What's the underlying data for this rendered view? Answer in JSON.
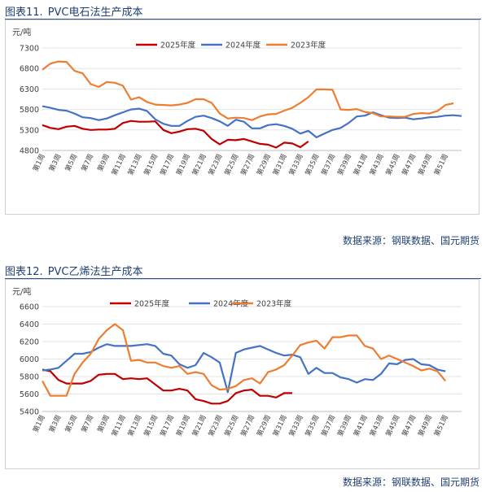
{
  "figures": [
    {
      "label": "图表11.",
      "title": "PVC电石法生产成本",
      "source": "数据来源：钢联数据、国元期货"
    },
    {
      "label": "图表12.",
      "title": "PVC乙烯法生产成本",
      "source": "数据来源：钢联数据、国元期货"
    }
  ],
  "chart_data": [
    {
      "type": "line",
      "title": "PVC电石法生产成本",
      "ylabel": "元/吨",
      "ylim": [
        4800,
        7300
      ],
      "yticks": [
        4800,
        5300,
        5800,
        6300,
        6800,
        7300
      ],
      "xtick_labels": [
        "第1周",
        "第3周",
        "第5周",
        "第7周",
        "第9周",
        "第11周",
        "第13周",
        "第15周",
        "第17周",
        "第19周",
        "第21周",
        "第23周",
        "第25周",
        "第27周",
        "第29周",
        "第31周",
        "第33周",
        "第35周",
        "第37周",
        "第39周",
        "第41周",
        "第43周",
        "第45周",
        "第47周",
        "第49周",
        "第51周"
      ],
      "legend_position": "top",
      "grid": "horizontal",
      "series": [
        {
          "name": "2025年度",
          "color": "#c00000",
          "values": [
            5420,
            5350,
            5320,
            5380,
            5400,
            5330,
            5300,
            5310,
            5310,
            5330,
            5470,
            5520,
            5500,
            5500,
            5510,
            5300,
            5220,
            5260,
            5320,
            5330,
            5280,
            5080,
            4950,
            5060,
            5050,
            5080,
            5020,
            4960,
            4940,
            4870,
            4990,
            4970,
            4880,
            5020
          ]
        },
        {
          "name": "2024年度",
          "color": "#4472c4",
          "values": [
            5880,
            5840,
            5790,
            5770,
            5700,
            5610,
            5590,
            5540,
            5580,
            5660,
            5730,
            5800,
            5820,
            5760,
            5560,
            5450,
            5400,
            5400,
            5520,
            5620,
            5650,
            5590,
            5510,
            5400,
            5550,
            5500,
            5340,
            5340,
            5420,
            5440,
            5400,
            5330,
            5210,
            5280,
            5120,
            5210,
            5300,
            5350,
            5470,
            5630,
            5650,
            5730,
            5660,
            5600,
            5590,
            5600,
            5560,
            5580,
            5610,
            5620,
            5650,
            5660,
            5640
          ]
        },
        {
          "name": "2023年度",
          "color": "#ed7d31",
          "values": [
            6770,
            6920,
            6970,
            6960,
            6740,
            6680,
            6420,
            6350,
            6470,
            6450,
            6380,
            6040,
            6100,
            5980,
            5920,
            5910,
            5900,
            5920,
            5960,
            6050,
            6050,
            5960,
            5700,
            5580,
            5600,
            5590,
            5540,
            5630,
            5680,
            5690,
            5770,
            5840,
            5960,
            6100,
            6290,
            6290,
            6280,
            5800,
            5790,
            5810,
            5740,
            5710,
            5630,
            5630,
            5620,
            5620,
            5690,
            5710,
            5700,
            5760,
            5910,
            5950
          ]
        }
      ]
    },
    {
      "type": "line",
      "title": "PVC乙烯法生产成本",
      "ylabel": "元/吨",
      "ylim": [
        5400,
        6600
      ],
      "yticks": [
        5400,
        5600,
        5800,
        6000,
        6200,
        6400,
        6600
      ],
      "xtick_labels": [
        "第1周",
        "第3周",
        "第5周",
        "第7周",
        "第9周",
        "第11周",
        "第13周",
        "第15周",
        "第17周",
        "第19周",
        "第21周",
        "第23周",
        "第25周",
        "第27周",
        "第29周",
        "第31周",
        "第33周",
        "第35周",
        "第37周",
        "第39周",
        "第41周",
        "第43周",
        "第45周",
        "第47周",
        "第49周",
        "第51周"
      ],
      "legend_position": "top",
      "grid": "horizontal",
      "series": [
        {
          "name": "2025年度",
          "color": "#c00000",
          "values": [
            5880,
            5860,
            5760,
            5720,
            5720,
            5720,
            5750,
            5820,
            5830,
            5830,
            5770,
            5780,
            5770,
            5780,
            5710,
            5640,
            5640,
            5660,
            5640,
            5540,
            5520,
            5490,
            5490,
            5520,
            5610,
            5640,
            5650,
            5580,
            5580,
            5560,
            5610,
            5610
          ]
        },
        {
          "name": "2024年度",
          "color": "#4472c4",
          "values": [
            5870,
            5880,
            5900,
            5980,
            6060,
            6060,
            6080,
            6130,
            6170,
            6150,
            6150,
            6150,
            6160,
            6170,
            6150,
            6060,
            6040,
            5940,
            5900,
            5930,
            6070,
            6020,
            5960,
            5620,
            6070,
            6110,
            6130,
            6150,
            6110,
            6070,
            6040,
            6050,
            6020,
            5830,
            5900,
            5840,
            5840,
            5790,
            5770,
            5730,
            5770,
            5760,
            5830,
            5950,
            5940,
            5990,
            6000,
            5940,
            5930,
            5880,
            5860
          ]
        },
        {
          "name": "2023年度",
          "color": "#ed7d31",
          "values": [
            5750,
            5580,
            5580,
            5580,
            5830,
            5960,
            6060,
            6230,
            6330,
            6400,
            6330,
            5980,
            5990,
            5960,
            5960,
            5920,
            5900,
            5920,
            5830,
            5850,
            5830,
            5700,
            5650,
            5660,
            5690,
            5760,
            5780,
            5720,
            5850,
            5880,
            5930,
            6040,
            6160,
            6190,
            6210,
            6120,
            6250,
            6250,
            6270,
            6270,
            6150,
            6120,
            6000,
            6040,
            6000,
            5960,
            5920,
            5870,
            5890,
            5860,
            5750
          ]
        }
      ]
    }
  ]
}
